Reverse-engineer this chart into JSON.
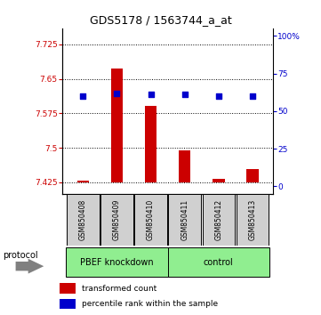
{
  "title": "GDS5178 / 1563744_a_at",
  "samples": [
    "GSM850408",
    "GSM850409",
    "GSM850410",
    "GSM850411",
    "GSM850412",
    "GSM850413"
  ],
  "group1_label": "PBEF knockdown",
  "group2_label": "control",
  "bar_color": "#CC0000",
  "dot_color": "#0000CC",
  "ylim_left": [
    7.4,
    7.76
  ],
  "yticks_left": [
    7.425,
    7.5,
    7.575,
    7.65,
    7.725
  ],
  "ytick_labels_left": [
    "7.425",
    "7.5",
    "7.575",
    "7.65",
    "7.725"
  ],
  "ylim_right": [
    -5,
    105
  ],
  "yticks_right": [
    0,
    25,
    50,
    75,
    100
  ],
  "ytick_labels_right": [
    "0",
    "25",
    "50",
    "75",
    "100%"
  ],
  "bar_bottom": 7.425,
  "transformed_counts": [
    7.428,
    7.672,
    7.592,
    7.494,
    7.432,
    7.454
  ],
  "percentile_ranks": [
    60,
    62,
    61,
    61,
    60,
    60
  ],
  "legend_red": "transformed count",
  "legend_blue": "percentile rank within the sample",
  "protocol_label": "protocol",
  "bar_width": 0.35,
  "sample_box_color": "#D0D0D0",
  "group_box_color": "#90EE90"
}
